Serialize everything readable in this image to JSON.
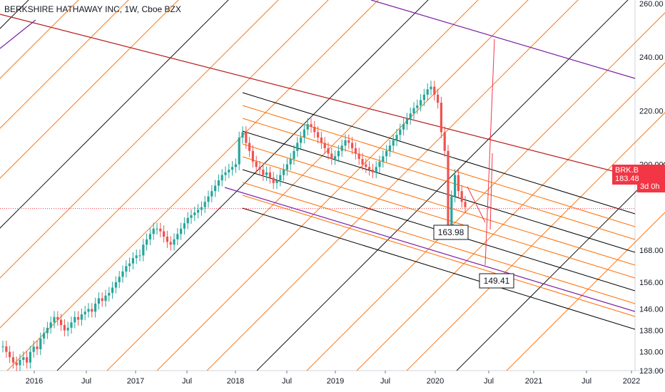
{
  "chart_data": {
    "type": "candlestick",
    "title": "BERKSHIRE HATHAWAY INC, 1W, Cboe BZX",
    "symbol_badge": "BRK.B",
    "last_price": "183.48",
    "timer": "3d 0h",
    "price_axis_ticks": [
      "260.00",
      "240.00",
      "220.00",
      "200.00",
      "183.48",
      "168.00",
      "156.00",
      "146.00",
      "138.00",
      "130.00",
      "123.00"
    ],
    "time_axis_labels": [
      "2016",
      "Jul",
      "2017",
      "Jul",
      "2018",
      "Jul",
      "2019",
      "Jul",
      "2020",
      "Jul",
      "2021",
      "Jul",
      "2022"
    ],
    "annotations": [
      {
        "label": "163.98",
        "price": 163.98
      },
      {
        "label": "149.41",
        "price": 149.41
      }
    ],
    "close_series": [
      132,
      130,
      128,
      126,
      125,
      127,
      128,
      126,
      130,
      132,
      131,
      135,
      137,
      139,
      141,
      143,
      142,
      140,
      138,
      139,
      141,
      143,
      142,
      144,
      145,
      146,
      145,
      148,
      150,
      149,
      151,
      152,
      154,
      156,
      158,
      160,
      162,
      163,
      165,
      166,
      166,
      170,
      172,
      174,
      176,
      176,
      175,
      173,
      171,
      170,
      172,
      174,
      176,
      178,
      180,
      181,
      182,
      183,
      184,
      186,
      188,
      190,
      192,
      194,
      196,
      197,
      198,
      199,
      200,
      210,
      212,
      208,
      205,
      201,
      199,
      198,
      196,
      197,
      195,
      193,
      194,
      196,
      198,
      200,
      202,
      205,
      208,
      210,
      213,
      215,
      214,
      212,
      210,
      208,
      206,
      204,
      202,
      203,
      205,
      207,
      209,
      208,
      206,
      204,
      202,
      200,
      199,
      198,
      197,
      199,
      201,
      203,
      205,
      207,
      209,
      211,
      213,
      215,
      217,
      219,
      221,
      222,
      224,
      226,
      228,
      229,
      226,
      223,
      212,
      205,
      175,
      188,
      196,
      190,
      186,
      184
    ]
  }
}
